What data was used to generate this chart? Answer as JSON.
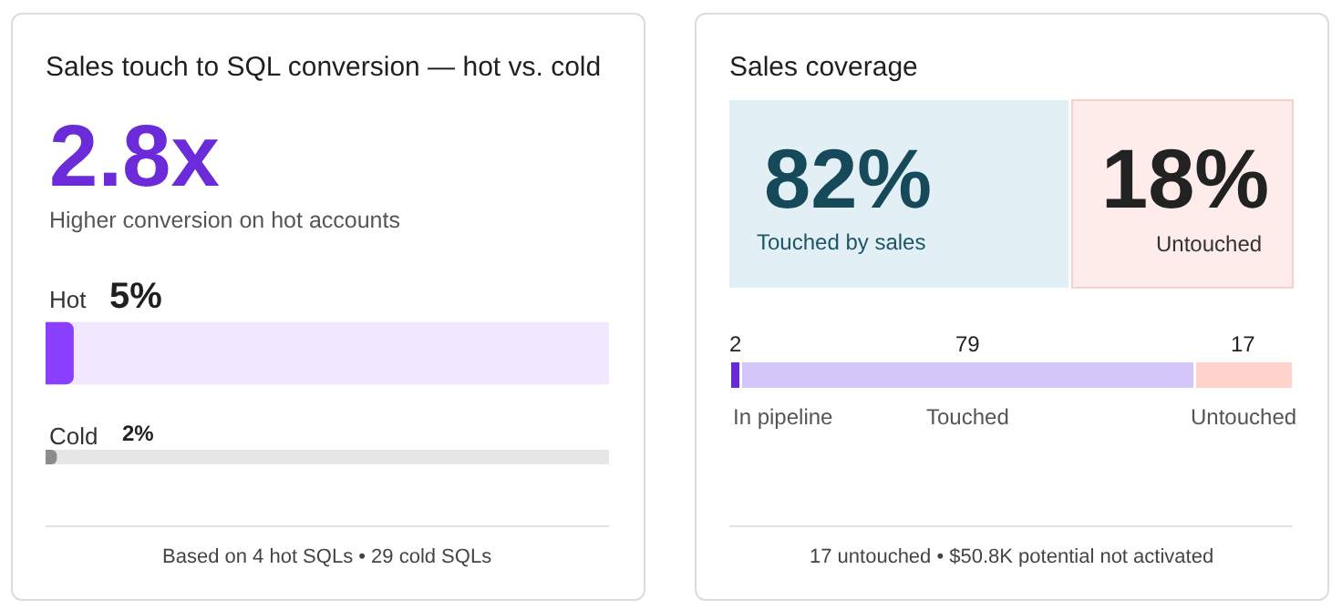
{
  "chart_data": [
    {
      "type": "bar",
      "orientation": "horizontal",
      "title": "Sales touch to SQL conversion — hot vs. cold",
      "categories": [
        "Hot",
        "Cold"
      ],
      "values": [
        5,
        2
      ],
      "value_labels": [
        "5%",
        "2%"
      ],
      "colors": [
        "#8a3ffc",
        "#8c8c8c"
      ],
      "xlim": [
        0,
        100
      ],
      "annotations": [
        "2.8x",
        "Higher conversion on hot accounts",
        "Based on 4 hot SQLs • 29 cold SQLs"
      ]
    },
    {
      "type": "bar",
      "orientation": "horizontal",
      "stacked": true,
      "title": "Sales coverage",
      "categories": [
        null
      ],
      "data_labels": true,
      "series": [
        {
          "name": "In pipeline",
          "color": "#6a2bd4",
          "values": [
            2
          ]
        },
        {
          "name": "Touched",
          "color": "#d5c6fa",
          "values": [
            79
          ]
        },
        {
          "name": "Untouched",
          "color": "#fdd3cc",
          "values": [
            17
          ]
        }
      ],
      "annotations": [
        "82%",
        "Touched by sales",
        "18%",
        "Untouched",
        "17 untouched • $50.8K potential not activated"
      ]
    }
  ]
}
